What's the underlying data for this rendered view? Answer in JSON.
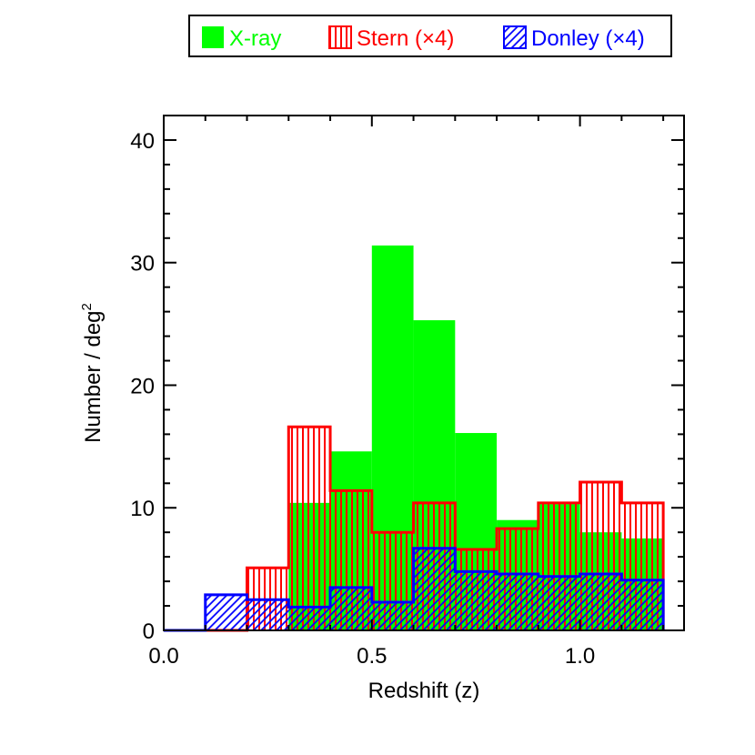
{
  "chart_data": {
    "type": "bar",
    "xlabel": "Redshift (z)",
    "ylabel": "Number / deg",
    "ylabel_superscript": "2",
    "xlim": [
      0.0,
      1.25
    ],
    "ylim": [
      0,
      42
    ],
    "xticks": [
      0.0,
      0.5,
      1.0
    ],
    "xtick_labels": [
      "0.0",
      "0.5",
      "1.0"
    ],
    "yticks": [
      0,
      10,
      20,
      30,
      40
    ],
    "ytick_labels": [
      "0",
      "10",
      "20",
      "30",
      "40"
    ],
    "bin_edges": [
      0.0,
      0.1,
      0.2,
      0.3,
      0.4,
      0.5,
      0.6,
      0.7,
      0.8,
      0.9,
      1.0,
      1.1,
      1.2
    ],
    "legend_position": "top",
    "series": [
      {
        "name": "X-ray",
        "fill": "solid",
        "color": "#00ff00",
        "values": [
          0,
          0,
          0,
          10.4,
          14.6,
          31.4,
          25.3,
          16.1,
          9.0,
          10.3,
          8.0,
          7.5
        ]
      },
      {
        "name": "Stern (×4)",
        "fill": "vertical-hatch",
        "color": "#ff0000",
        "values": [
          0,
          0,
          5.1,
          16.6,
          11.4,
          8.0,
          10.4,
          6.6,
          8.3,
          10.4,
          12.1,
          10.4
        ]
      },
      {
        "name": "Donley (×4)",
        "fill": "diagonal-hatch",
        "color": "#0000ff",
        "values": [
          0,
          2.9,
          2.5,
          1.9,
          3.5,
          2.3,
          6.7,
          4.8,
          4.6,
          4.4,
          4.6,
          4.1
        ]
      }
    ]
  }
}
